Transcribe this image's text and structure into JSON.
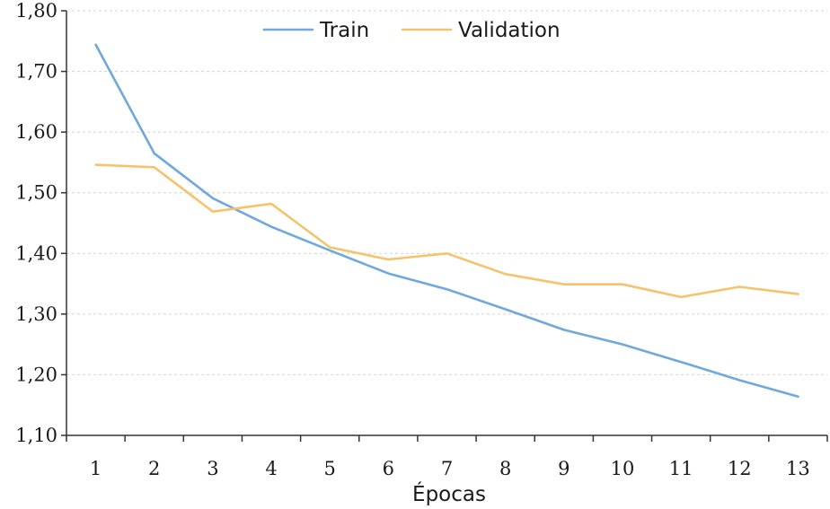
{
  "chart_data": {
    "type": "line",
    "title": "",
    "xlabel": "Épocas",
    "ylabel": "",
    "categories": [
      "1",
      "2",
      "3",
      "4",
      "5",
      "6",
      "7",
      "8",
      "9",
      "10",
      "11",
      "12",
      "13"
    ],
    "ylim": [
      1.1,
      1.8
    ],
    "y_ticks": [
      1.1,
      1.2,
      1.3,
      1.4,
      1.5,
      1.6,
      1.7,
      1.8
    ],
    "y_tick_labels": [
      "1,10",
      "1,20",
      "1,30",
      "1,40",
      "1,50",
      "1,60",
      "1,70",
      "1,80"
    ],
    "grid": true,
    "legend_position": "top-center",
    "series": [
      {
        "name": "Train",
        "color": "#6fa8dc",
        "values": [
          1.744,
          1.565,
          1.491,
          1.444,
          1.405,
          1.367,
          1.341,
          1.308,
          1.274,
          1.25,
          1.221,
          1.191,
          1.164
        ]
      },
      {
        "name": "Validation",
        "color": "#f6c36b",
        "values": [
          1.546,
          1.542,
          1.469,
          1.482,
          1.41,
          1.39,
          1.4,
          1.366,
          1.349,
          1.349,
          1.328,
          1.345,
          1.333
        ]
      }
    ]
  }
}
